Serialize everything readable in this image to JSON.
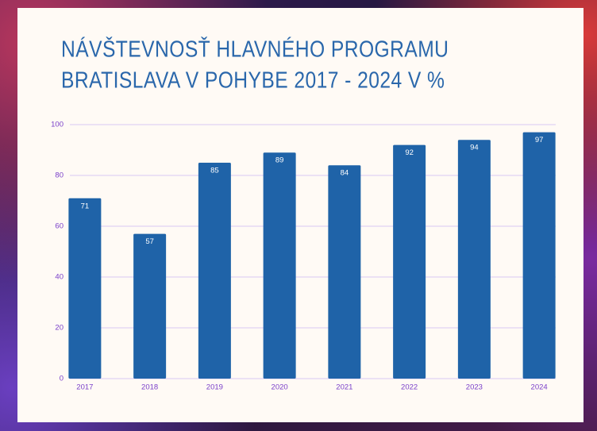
{
  "chart_data": {
    "type": "bar",
    "title": [
      "NÁVŠTEVNOSŤ HLAVNÉHO PROGRAMU",
      "BRATISLAVA V POHYBE 2017 - 2024 V %"
    ],
    "categories": [
      "2017",
      "2018",
      "2019",
      "2020",
      "2021",
      "2022",
      "2023",
      "2024"
    ],
    "values": [
      71,
      57,
      85,
      89,
      84,
      92,
      94,
      97
    ],
    "color": "#1f63a8",
    "ylim": [
      0,
      100
    ],
    "yticks": [
      0,
      20,
      40,
      60,
      80,
      100
    ],
    "grid": true
  }
}
